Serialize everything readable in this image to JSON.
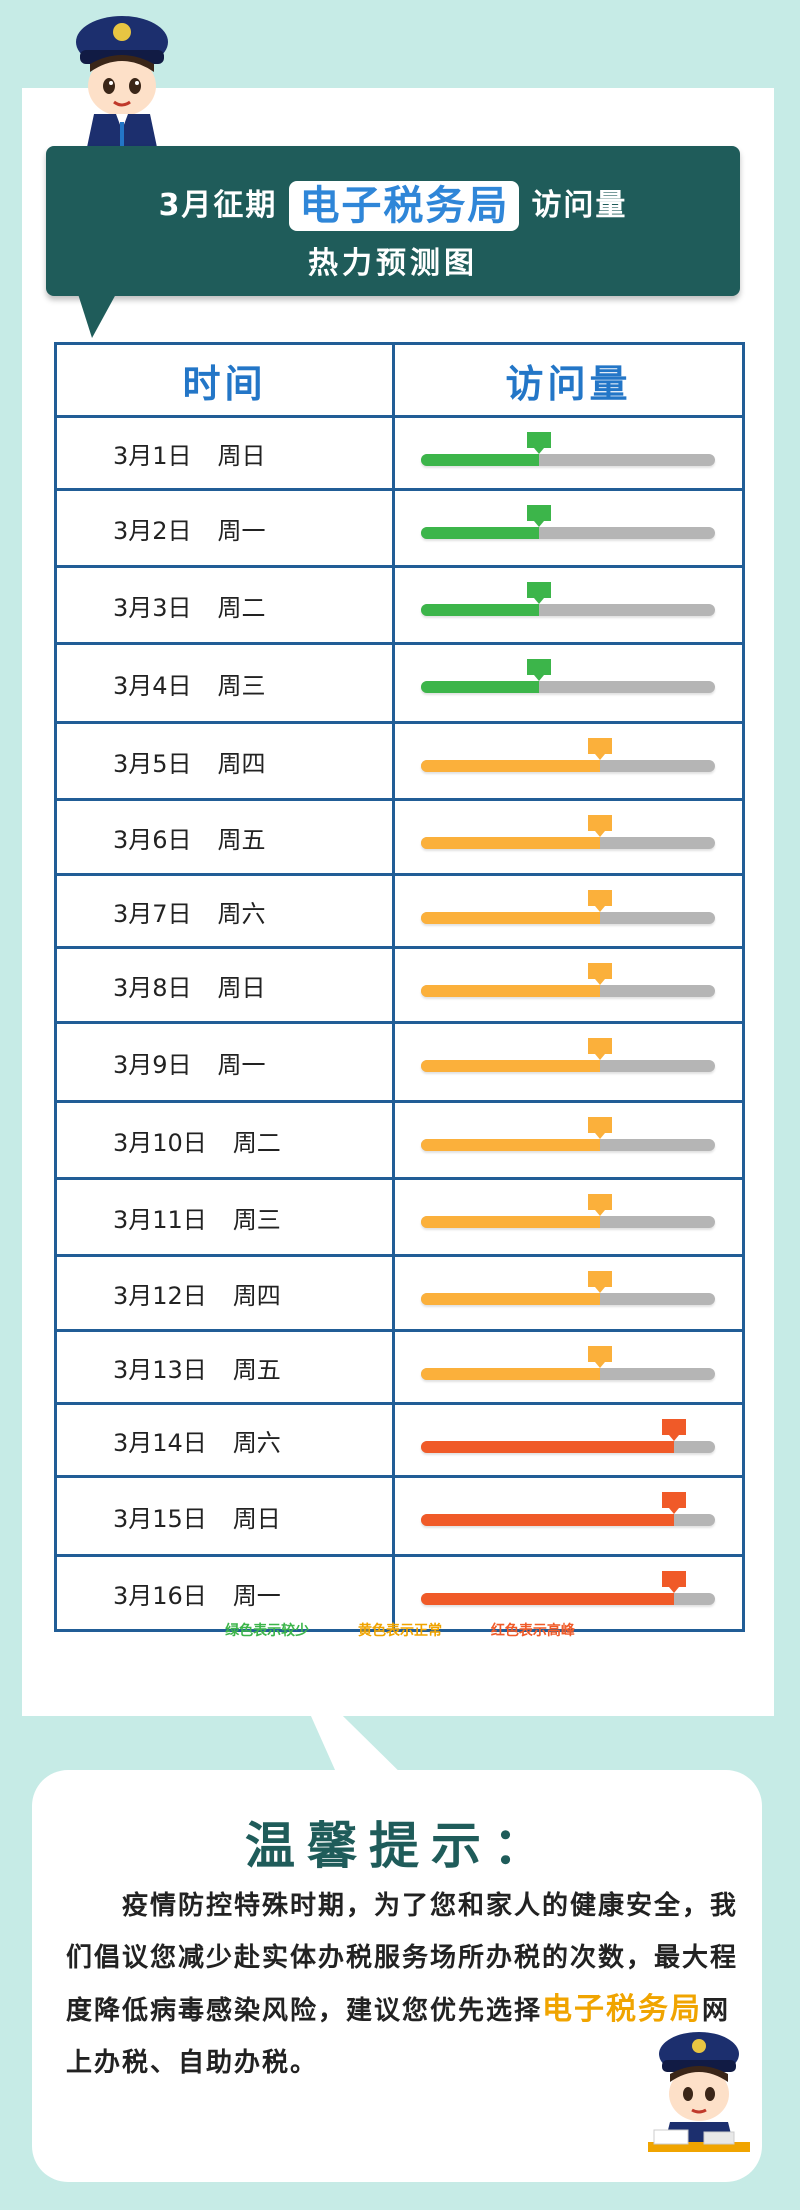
{
  "header": {
    "title_prefix": "3月征期",
    "title_highlight": "电子税务局",
    "title_suffix": "访问量",
    "subtitle": "热力预测图"
  },
  "table": {
    "col_time": "时间",
    "col_visits": "访问量",
    "rows": [
      {
        "date": "3月1日",
        "weekday": "周日",
        "level": 0.4,
        "color": "#3cb54a"
      },
      {
        "date": "3月2日",
        "weekday": "周一",
        "level": 0.4,
        "color": "#3cb54a"
      },
      {
        "date": "3月3日",
        "weekday": "周二",
        "level": 0.4,
        "color": "#3cb54a"
      },
      {
        "date": "3月4日",
        "weekday": "周三",
        "level": 0.4,
        "color": "#3cb54a"
      },
      {
        "date": "3月5日",
        "weekday": "周四",
        "level": 0.61,
        "color": "#fbb03b"
      },
      {
        "date": "3月6日",
        "weekday": "周五",
        "level": 0.61,
        "color": "#fbb03b"
      },
      {
        "date": "3月7日",
        "weekday": "周六",
        "level": 0.61,
        "color": "#fbb03b"
      },
      {
        "date": "3月8日",
        "weekday": "周日",
        "level": 0.61,
        "color": "#fbb03b"
      },
      {
        "date": "3月9日",
        "weekday": "周一",
        "level": 0.61,
        "color": "#fbb03b"
      },
      {
        "date": "3月10日",
        "weekday": "周二",
        "level": 0.61,
        "color": "#fbb03b"
      },
      {
        "date": "3月11日",
        "weekday": "周三",
        "level": 0.61,
        "color": "#fbb03b"
      },
      {
        "date": "3月12日",
        "weekday": "周四",
        "level": 0.61,
        "color": "#fbb03b"
      },
      {
        "date": "3月13日",
        "weekday": "周五",
        "level": 0.61,
        "color": "#fbb03b"
      },
      {
        "date": "3月14日",
        "weekday": "周六",
        "level": 0.86,
        "color": "#f05a28"
      },
      {
        "date": "3月15日",
        "weekday": "周日",
        "level": 0.86,
        "color": "#f05a28"
      },
      {
        "date": "3月16日",
        "weekday": "周一",
        "level": 0.86,
        "color": "#f05a28"
      }
    ]
  },
  "legend": {
    "green": {
      "text": "绿色表示较少",
      "color": "#3cb54a"
    },
    "yellow": {
      "text": "黄色表示正常",
      "color": "#f0a400"
    },
    "red": {
      "text": "红色表示高峰",
      "color": "#f05a28"
    }
  },
  "tip": {
    "title": "温馨提示：",
    "body_part1": "疫情防控特殊时期，为了您和家人的健康安全，我们倡议您减少赴实体办税服务场所办税的次数，最大程度降低病毒感染风险，建议您优先选择",
    "body_highlight": "电子税务局",
    "body_part2": "网上办税、自助办税。"
  },
  "colors": {
    "background": "#c6ebe6",
    "header_bg": "#1f5c5a",
    "table_border": "#215d96",
    "track": "#b5b5b5"
  }
}
